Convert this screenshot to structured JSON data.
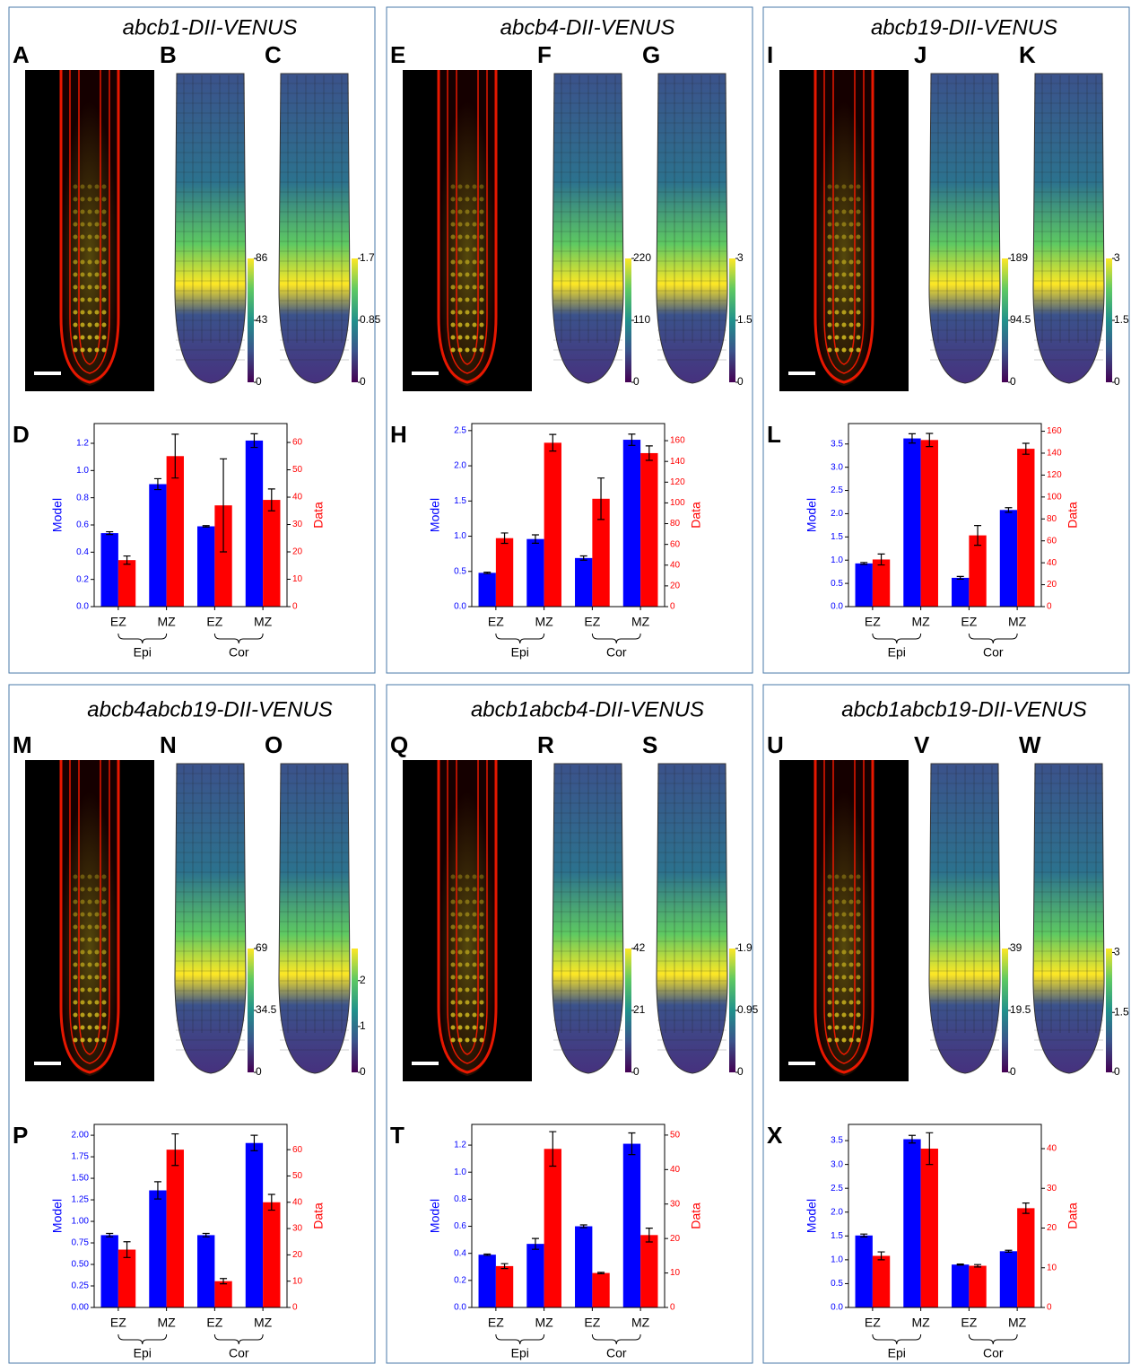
{
  "chart_data": [
    {
      "type": "bar",
      "title": "abcb1-DII-VENUS",
      "panel_labels": [
        "A",
        "B",
        "C",
        "D"
      ],
      "colorbars": [
        {
          "lim": [
            0,
            86
          ],
          "ticks": [
            0,
            43,
            86
          ]
        },
        {
          "lim": [
            0,
            1.7
          ],
          "ticks": [
            0,
            0.85,
            1.7
          ]
        }
      ],
      "categories": [
        "EZ",
        "MZ",
        "EZ",
        "MZ"
      ],
      "groups": [
        "Epi",
        "Cor"
      ],
      "ylabel": "Model",
      "y2label": "Data",
      "ylim": [
        0,
        1.345
      ],
      "yticks": [
        {
          "value": 0,
          "label": "0.0"
        },
        0.2,
        0.4,
        0.6,
        0.8,
        {
          "value": 1,
          "label": "1.0"
        },
        1.2
      ],
      "y2lim": [
        0,
        66.9
      ],
      "y2ticks": [
        0,
        10,
        20,
        30,
        40,
        50,
        60
      ],
      "series": [
        {
          "color": "#0000ff",
          "values": [
            0.54,
            0.9,
            0.59,
            1.22
          ],
          "errors": [
            0.01,
            0.04,
            0.005,
            0.05
          ]
        },
        {
          "color": "#ff0000",
          "axis": "y2",
          "values": [
            17,
            55,
            37,
            39
          ],
          "errors": [
            1.5,
            8,
            17,
            4
          ]
        }
      ]
    },
    {
      "type": "bar",
      "title": "abcb4-DII-VENUS",
      "panel_labels": [
        "E",
        "F",
        "G",
        "H"
      ],
      "colorbars": [
        {
          "lim": [
            0,
            220
          ],
          "ticks": [
            0,
            110,
            220
          ]
        },
        {
          "lim": [
            0,
            3
          ],
          "ticks": [
            0,
            1.5,
            3
          ]
        }
      ],
      "categories": [
        "EZ",
        "MZ",
        "EZ",
        "MZ"
      ],
      "groups": [
        "Epi",
        "Cor"
      ],
      "ylabel": "Model",
      "y2label": "Data",
      "ylim": [
        0,
        2.6
      ],
      "yticks": [
        {
          "value": 0,
          "label": "0.0"
        },
        0.5,
        {
          "value": 1,
          "label": "1.0"
        },
        1.5,
        {
          "value": 2,
          "label": "2.0"
        },
        2.5
      ],
      "y2lim": [
        0,
        176.5
      ],
      "y2ticks": [
        0,
        20,
        40,
        60,
        80,
        100,
        120,
        140,
        160
      ],
      "series": [
        {
          "color": "#0000ff",
          "values": [
            0.48,
            0.96,
            0.69,
            2.37
          ],
          "errors": [
            0.01,
            0.06,
            0.03,
            0.08
          ]
        },
        {
          "color": "#ff0000",
          "axis": "y2",
          "values": [
            66,
            158,
            104,
            148
          ],
          "errors": [
            5,
            8,
            20,
            7
          ]
        }
      ]
    },
    {
      "type": "bar",
      "title": "abcb19-DII-VENUS",
      "panel_labels": [
        "I",
        "J",
        "K",
        "L"
      ],
      "colorbars": [
        {
          "lim": [
            0,
            189
          ],
          "ticks": [
            0,
            94.5,
            189
          ]
        },
        {
          "lim": [
            0,
            3
          ],
          "ticks": [
            0,
            1.5,
            3
          ]
        }
      ],
      "categories": [
        "EZ",
        "MZ",
        "EZ",
        "MZ"
      ],
      "groups": [
        "Epi",
        "Cor"
      ],
      "ylabel": "Model",
      "y2label": "Data",
      "ylim": [
        0,
        3.94
      ],
      "yticks": [
        {
          "value": 0,
          "label": "0.0"
        },
        0.5,
        {
          "value": 1,
          "label": "1.0"
        },
        1.5,
        {
          "value": 2,
          "label": "2.0"
        },
        2.5,
        {
          "value": 3,
          "label": "3.0"
        },
        3.5
      ],
      "y2lim": [
        0,
        167
      ],
      "y2ticks": [
        0,
        20,
        40,
        60,
        80,
        100,
        120,
        140,
        160
      ],
      "series": [
        {
          "color": "#0000ff",
          "values": [
            0.93,
            3.62,
            0.62,
            2.08
          ],
          "errors": [
            0.02,
            0.1,
            0.03,
            0.05
          ]
        },
        {
          "color": "#ff0000",
          "axis": "y2",
          "values": [
            43,
            152,
            65,
            144
          ],
          "errors": [
            5,
            6,
            9,
            5
          ]
        }
      ]
    },
    {
      "type": "bar",
      "title": "abcb4abcb19-DII-VENUS",
      "panel_labels": [
        "M",
        "N",
        "O",
        "P"
      ],
      "colorbars": [
        {
          "lim": [
            0,
            69
          ],
          "ticks": [
            0,
            34.5,
            69
          ]
        },
        {
          "lim": [
            0,
            2.7
          ],
          "ticks": [
            0,
            1,
            2
          ]
        }
      ],
      "categories": [
        "EZ",
        "MZ",
        "EZ",
        "MZ"
      ],
      "groups": [
        "Epi",
        "Cor"
      ],
      "ylabel": "Model",
      "y2label": "Data",
      "ylim": [
        0,
        2.126
      ],
      "yticks": [
        {
          "value": 0,
          "label": "0.00"
        },
        0.25,
        {
          "value": 0.5,
          "label": "0.50"
        },
        0.75,
        {
          "value": 1,
          "label": "1.00"
        },
        1.25,
        {
          "value": 1.5,
          "label": "1.50"
        },
        1.75,
        {
          "value": 2,
          "label": "2.00"
        }
      ],
      "y2lim": [
        0,
        69.6
      ],
      "y2ticks": [
        0,
        10,
        20,
        30,
        40,
        50,
        60
      ],
      "series": [
        {
          "color": "#0000ff",
          "values": [
            0.84,
            1.36,
            0.84,
            1.91
          ],
          "errors": [
            0.02,
            0.1,
            0.02,
            0.09
          ]
        },
        {
          "color": "#ff0000",
          "axis": "y2",
          "values": [
            22,
            60,
            10,
            40
          ],
          "errors": [
            3,
            6,
            1,
            3
          ]
        }
      ]
    },
    {
      "type": "bar",
      "title": "abcb1abcb4-DII-VENUS",
      "panel_labels": [
        "Q",
        "R",
        "S",
        "T"
      ],
      "colorbars": [
        {
          "lim": [
            0,
            42
          ],
          "ticks": [
            0,
            21,
            42
          ]
        },
        {
          "lim": [
            0,
            1.9
          ],
          "ticks": [
            0,
            0.95,
            1.9
          ]
        }
      ],
      "categories": [
        "EZ",
        "MZ",
        "EZ",
        "MZ"
      ],
      "groups": [
        "Epi",
        "Cor"
      ],
      "ylabel": "Model",
      "y2label": "Data",
      "ylim": [
        0,
        1.353
      ],
      "yticks": [
        {
          "value": 0,
          "label": "0.0"
        },
        0.2,
        0.4,
        0.6,
        0.8,
        {
          "value": 1,
          "label": "1.0"
        },
        1.2
      ],
      "y2lim": [
        0,
        53.1
      ],
      "y2ticks": [
        0,
        10,
        20,
        30,
        40,
        50
      ],
      "series": [
        {
          "color": "#0000ff",
          "values": [
            0.39,
            0.47,
            0.6,
            1.21
          ],
          "errors": [
            0.005,
            0.04,
            0.01,
            0.08
          ]
        },
        {
          "color": "#ff0000",
          "axis": "y2",
          "values": [
            12,
            46,
            10,
            21
          ],
          "errors": [
            0.7,
            5,
            0.2,
            2
          ]
        }
      ]
    },
    {
      "type": "bar",
      "title": "abcb1abcb19-DII-VENUS",
      "panel_labels": [
        "U",
        "V",
        "W",
        "X"
      ],
      "colorbars": [
        {
          "lim": [
            0,
            39
          ],
          "ticks": [
            0,
            19.5,
            39
          ]
        },
        {
          "lim": [
            0,
            3.1
          ],
          "ticks": [
            0,
            1.5,
            3
          ]
        }
      ],
      "categories": [
        "EZ",
        "MZ",
        "EZ",
        "MZ"
      ],
      "groups": [
        "Epi",
        "Cor"
      ],
      "ylabel": "Model",
      "y2label": "Data",
      "ylim": [
        0,
        3.84
      ],
      "yticks": [
        {
          "value": 0,
          "label": "0.0"
        },
        0.5,
        {
          "value": 1,
          "label": "1.0"
        },
        1.5,
        {
          "value": 2,
          "label": "2.0"
        },
        2.5,
        {
          "value": 3,
          "label": "3.0"
        },
        3.5
      ],
      "y2lim": [
        0,
        46.1
      ],
      "y2ticks": [
        0,
        10,
        20,
        30,
        40
      ],
      "series": [
        {
          "color": "#0000ff",
          "values": [
            1.51,
            3.53,
            0.9,
            1.18
          ],
          "errors": [
            0.03,
            0.08,
            0.01,
            0.02
          ]
        },
        {
          "color": "#ff0000",
          "axis": "y2",
          "values": [
            13,
            40,
            10.5,
            25
          ],
          "errors": [
            1,
            4,
            0.3,
            1.3
          ]
        }
      ]
    }
  ]
}
